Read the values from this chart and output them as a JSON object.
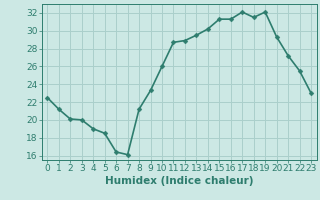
{
  "x": [
    0,
    1,
    2,
    3,
    4,
    5,
    6,
    7,
    8,
    9,
    10,
    11,
    12,
    13,
    14,
    15,
    16,
    17,
    18,
    19,
    20,
    21,
    22,
    23
  ],
  "y": [
    22.5,
    21.2,
    20.1,
    20.0,
    19.0,
    18.5,
    16.4,
    16.1,
    21.2,
    23.3,
    26.0,
    28.7,
    28.9,
    29.5,
    30.2,
    31.3,
    31.3,
    32.1,
    31.5,
    32.1,
    29.3,
    27.2,
    25.5,
    23.0
  ],
  "line_color": "#2e7d6e",
  "marker": "D",
  "marker_size": 2.5,
  "bg_color": "#cce8e4",
  "grid_color": "#aacfcb",
  "tick_color": "#2e7d6e",
  "xlabel": "Humidex (Indice chaleur)",
  "ylim": [
    15.5,
    33.0
  ],
  "xlim": [
    -0.5,
    23.5
  ],
  "yticks": [
    16,
    18,
    20,
    22,
    24,
    26,
    28,
    30,
    32
  ],
  "xticks": [
    0,
    1,
    2,
    3,
    4,
    5,
    6,
    7,
    8,
    9,
    10,
    11,
    12,
    13,
    14,
    15,
    16,
    17,
    18,
    19,
    20,
    21,
    22,
    23
  ],
  "xlabel_fontsize": 7.5,
  "tick_fontsize": 6.5,
  "line_width": 1.2
}
